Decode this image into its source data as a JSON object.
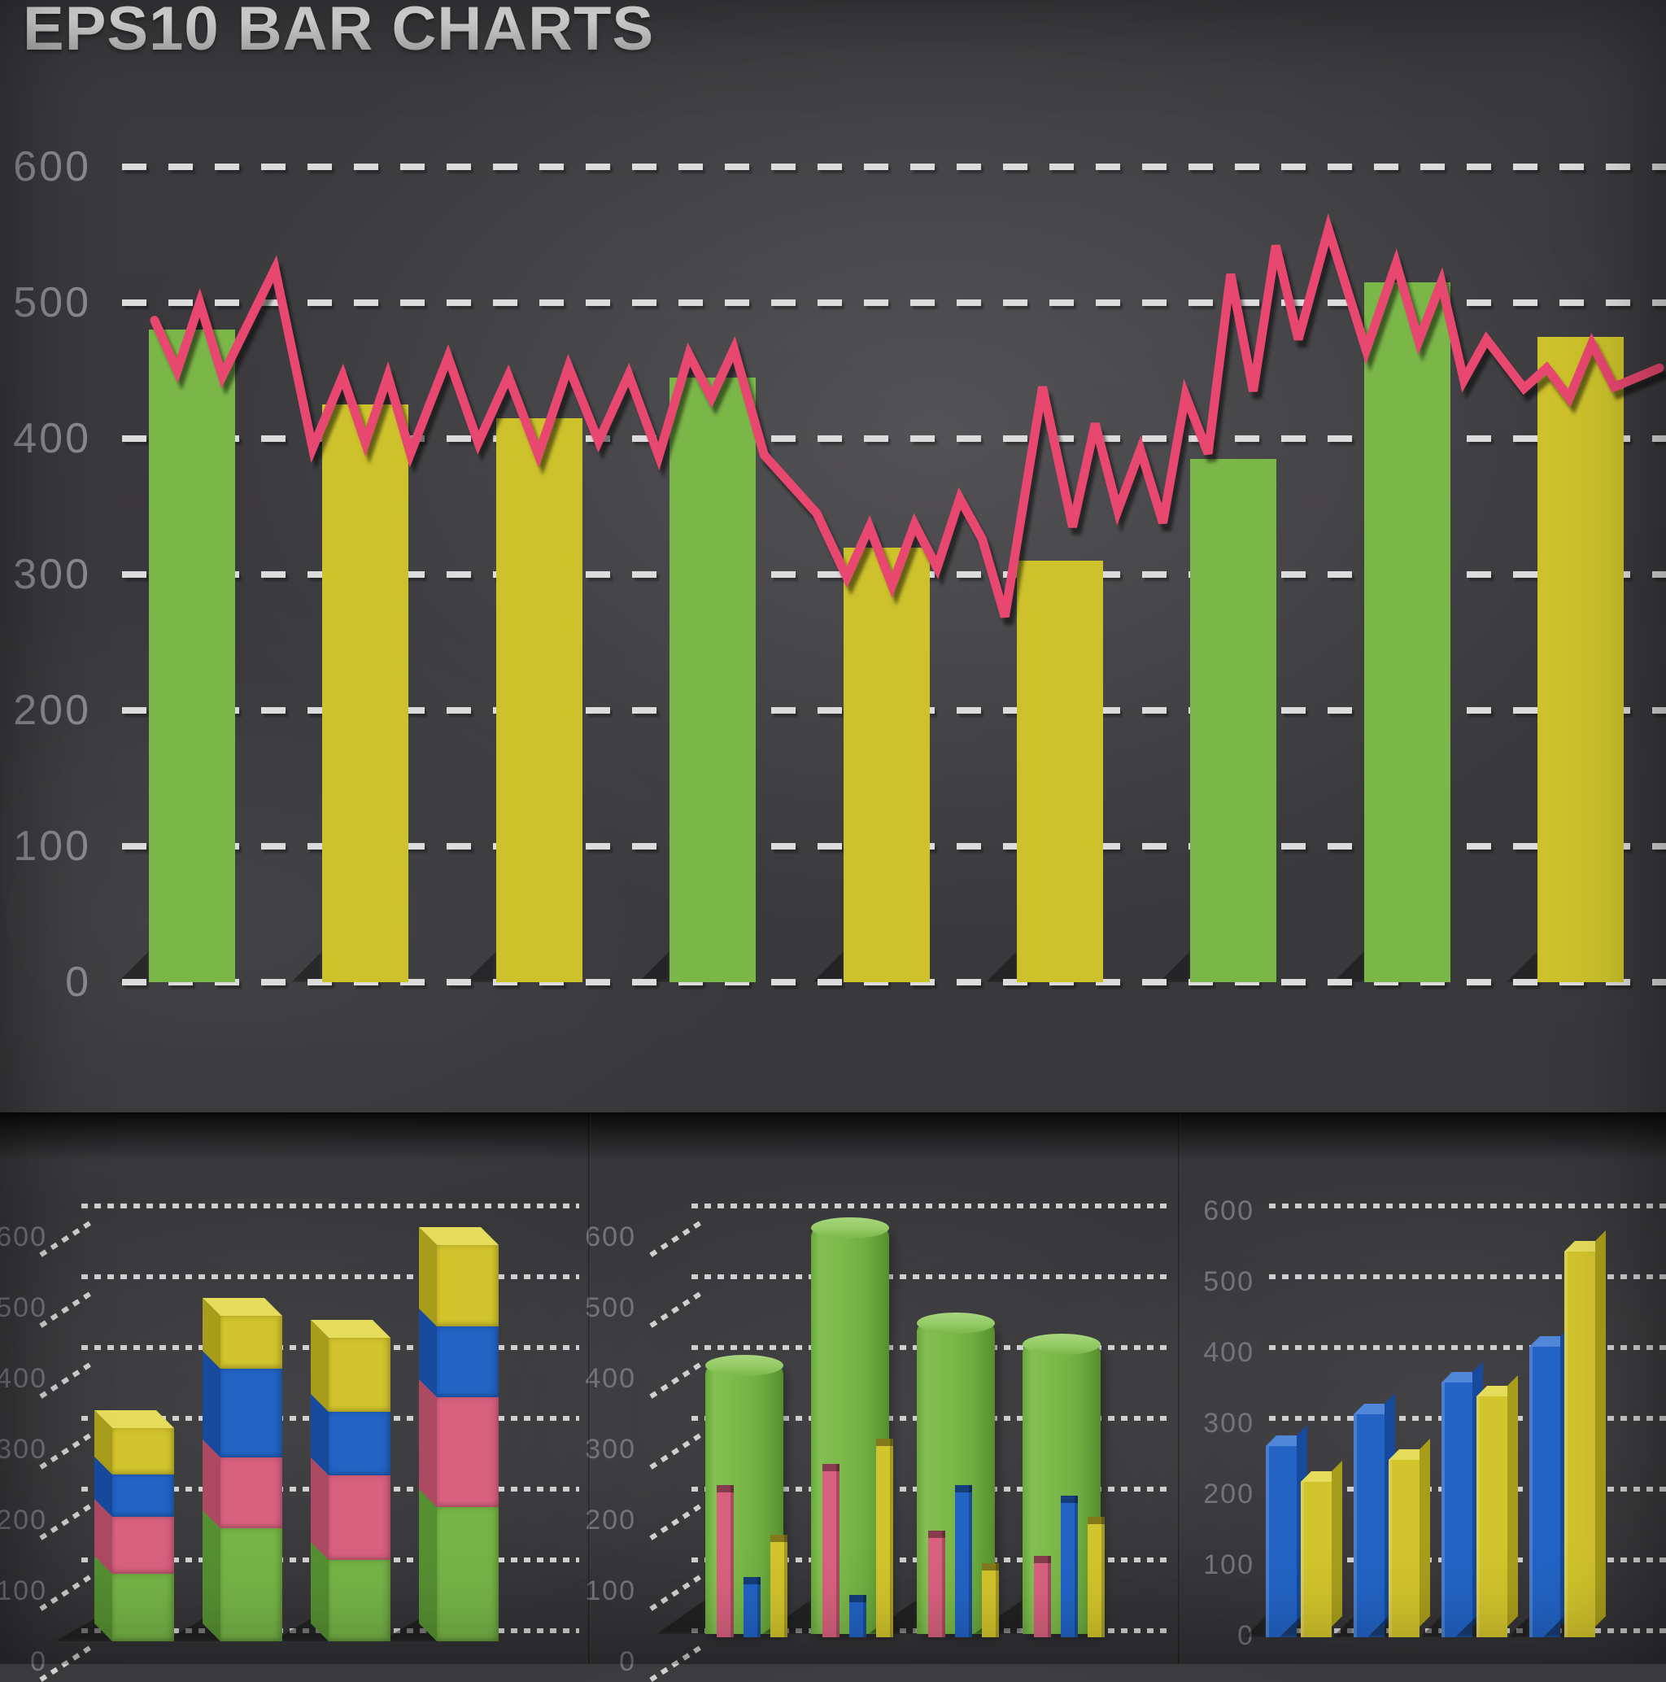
{
  "title": "EPS10 BAR CHARTS",
  "colors": {
    "background": "#3a393c",
    "green": "#7ab648",
    "yellow": "#cdc22b",
    "pink_line": "#e8476f",
    "cube_pink": "#d8617f",
    "blue": "#2263c4",
    "gridline": "#dcdcdc",
    "axis_label_main": "#8b8a8e",
    "axis_label_small": "#747378"
  },
  "chart_data": [
    {
      "id": "main",
      "type": "bar",
      "title": "",
      "xlabel": "",
      "ylabel": "",
      "ylim": [
        0,
        600
      ],
      "grid": true,
      "y_ticks": [
        "600",
        "500",
        "400",
        "300",
        "200",
        "100",
        "0"
      ],
      "bars": [
        {
          "color": "green",
          "value": 480
        },
        {
          "color": "yellow",
          "value": 425
        },
        {
          "color": "yellow",
          "value": 415
        },
        {
          "color": "green",
          "value": 445
        },
        {
          "color": "yellow",
          "value": 320
        },
        {
          "color": "yellow",
          "value": 310
        },
        {
          "color": "green",
          "value": 385
        },
        {
          "color": "green",
          "value": 515
        },
        {
          "color": "yellow",
          "value": 475
        }
      ],
      "line_series": {
        "name": "trend",
        "color": "#e8476f",
        "points_pct_value": [
          [
            0,
            487
          ],
          [
            1.5,
            450
          ],
          [
            3,
            500
          ],
          [
            4.5,
            446
          ],
          [
            8,
            525
          ],
          [
            10.5,
            393
          ],
          [
            12.5,
            446
          ],
          [
            14,
            397
          ],
          [
            15.5,
            446
          ],
          [
            17,
            389
          ],
          [
            19.5,
            460
          ],
          [
            21.5,
            397
          ],
          [
            23.5,
            446
          ],
          [
            25.5,
            388
          ],
          [
            27.5,
            453
          ],
          [
            29.5,
            398
          ],
          [
            31.5,
            447
          ],
          [
            33.5,
            387
          ],
          [
            35.5,
            462
          ],
          [
            37,
            430
          ],
          [
            38.5,
            466
          ],
          [
            40.5,
            388
          ],
          [
            44,
            345
          ],
          [
            46,
            298
          ],
          [
            47.5,
            335
          ],
          [
            49,
            292
          ],
          [
            50.5,
            337
          ],
          [
            52,
            305
          ],
          [
            53.5,
            356
          ],
          [
            55,
            326
          ],
          [
            56.5,
            269
          ],
          [
            59,
            438
          ],
          [
            61,
            335
          ],
          [
            62.5,
            411
          ],
          [
            64,
            347
          ],
          [
            65.5,
            392
          ],
          [
            67,
            338
          ],
          [
            68.5,
            432
          ],
          [
            70,
            389
          ],
          [
            71.5,
            521
          ],
          [
            73,
            435
          ],
          [
            74.5,
            542
          ],
          [
            76,
            473
          ],
          [
            78,
            554
          ],
          [
            80.5,
            465
          ],
          [
            82.5,
            529
          ],
          [
            84,
            472
          ],
          [
            85.5,
            515
          ],
          [
            87,
            443
          ],
          [
            88.5,
            473
          ],
          [
            91,
            437
          ],
          [
            92.5,
            452
          ],
          [
            94,
            430
          ],
          [
            95.5,
            470
          ],
          [
            97,
            438
          ],
          [
            100,
            452
          ]
        ]
      }
    },
    {
      "id": "bottom-left",
      "type": "bar",
      "subtype": "stacked-3d-cubes",
      "ylim": [
        0,
        600
      ],
      "grid": true,
      "y_ticks": [
        "600",
        "500",
        "400",
        "300",
        "200",
        "100",
        "0"
      ],
      "stack_order": [
        "green",
        "pink",
        "blue",
        "yellow"
      ],
      "bars": [
        {
          "green": 95,
          "pink": 80,
          "blue": 60,
          "yellow": 65
        },
        {
          "green": 160,
          "pink": 100,
          "blue": 125,
          "yellow": 75
        },
        {
          "green": 115,
          "pink": 120,
          "blue": 90,
          "yellow": 105
        },
        {
          "green": 190,
          "pink": 155,
          "blue": 100,
          "yellow": 115
        }
      ]
    },
    {
      "id": "bottom-middle",
      "type": "bar",
      "subtype": "3d-pillars-with-mini-bars",
      "ylim": [
        0,
        600
      ],
      "grid": true,
      "y_ticks": [
        "600",
        "500",
        "400",
        "300",
        "200",
        "100",
        "0"
      ],
      "groups": [
        {
          "green": 380,
          "pink": 215,
          "blue": 85,
          "yellow": 145
        },
        {
          "green": 575,
          "pink": 245,
          "blue": 60,
          "yellow": 280
        },
        {
          "green": 440,
          "pink": 150,
          "blue": 215,
          "yellow": 105
        },
        {
          "green": 410,
          "pink": 115,
          "blue": 200,
          "yellow": 170
        }
      ]
    },
    {
      "id": "bottom-right",
      "type": "bar",
      "subtype": "3d-bar-pairs",
      "ylim": [
        0,
        600
      ],
      "grid": true,
      "y_ticks": [
        "600",
        "500",
        "400",
        "300",
        "200",
        "100",
        "0"
      ],
      "pairs": [
        {
          "blue": 270,
          "yellow": 220
        },
        {
          "blue": 315,
          "yellow": 250
        },
        {
          "blue": 360,
          "yellow": 340
        },
        {
          "blue": 410,
          "yellow": 545
        }
      ]
    }
  ]
}
